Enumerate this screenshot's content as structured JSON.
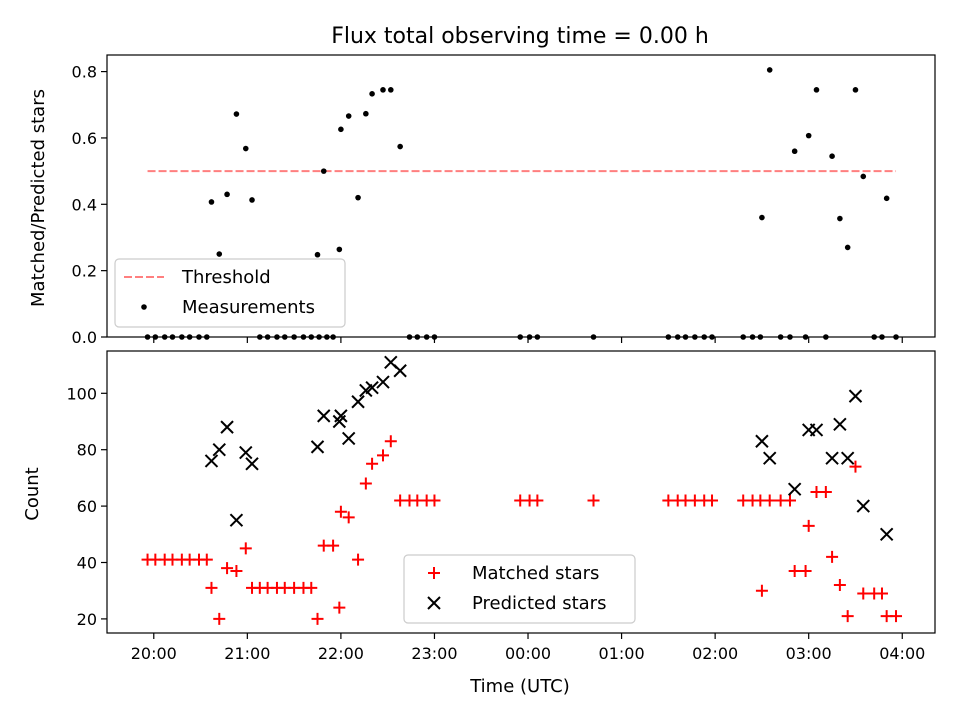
{
  "chart_data": [
    {
      "type": "scatter",
      "title": "Flux total observing time = 0.00 h",
      "ylabel": "Matched/Predicted stars",
      "ylim": [
        0,
        0.85
      ],
      "yticks": [
        "0.0",
        "0.2",
        "0.4",
        "0.6",
        "0.8"
      ],
      "x_hours_range": [
        -4.5,
        4.35
      ],
      "threshold": {
        "name": "Threshold",
        "value": 0.5,
        "x_start": "19:56",
        "x_end": "03:56",
        "color": "#ff7f7f"
      },
      "legend": {
        "location": "lower-left",
        "entries": [
          "Threshold",
          "Measurements"
        ]
      },
      "series": [
        {
          "name": "Measurements",
          "color": "#000000",
          "points": [
            {
              "time": "19:56",
              "y": 0.0
            },
            {
              "time": "20:01",
              "y": 0.0
            },
            {
              "time": "20:07",
              "y": 0.0
            },
            {
              "time": "20:12",
              "y": 0.0
            },
            {
              "time": "20:18",
              "y": 0.0
            },
            {
              "time": "20:23",
              "y": 0.0
            },
            {
              "time": "20:29",
              "y": 0.0
            },
            {
              "time": "20:34",
              "y": 0.0
            },
            {
              "time": "20:37",
              "y": 0.407
            },
            {
              "time": "20:42",
              "y": 0.25
            },
            {
              "time": "20:47",
              "y": 0.43
            },
            {
              "time": "20:53",
              "y": 0.672
            },
            {
              "time": "20:59",
              "y": 0.568
            },
            {
              "time": "21:03",
              "y": 0.413
            },
            {
              "time": "21:08",
              "y": 0.0
            },
            {
              "time": "21:13",
              "y": 0.0
            },
            {
              "time": "21:19",
              "y": 0.0
            },
            {
              "time": "21:24",
              "y": 0.0
            },
            {
              "time": "21:30",
              "y": 0.0
            },
            {
              "time": "21:36",
              "y": 0.0
            },
            {
              "time": "21:41",
              "y": 0.0
            },
            {
              "time": "21:46",
              "y": 0.0
            },
            {
              "time": "21:51",
              "y": 0.0
            },
            {
              "time": "21:45",
              "y": 0.248
            },
            {
              "time": "21:49",
              "y": 0.5
            },
            {
              "time": "21:55",
              "y": 0.0
            },
            {
              "time": "21:59",
              "y": 0.264
            },
            {
              "time": "22:00",
              "y": 0.626
            },
            {
              "time": "22:05",
              "y": 0.666
            },
            {
              "time": "22:11",
              "y": 0.42
            },
            {
              "time": "22:16",
              "y": 0.673
            },
            {
              "time": "22:20",
              "y": 0.733
            },
            {
              "time": "22:27",
              "y": 0.745
            },
            {
              "time": "22:32",
              "y": 0.745
            },
            {
              "time": "22:38",
              "y": 0.574
            },
            {
              "time": "22:44",
              "y": 0.0
            },
            {
              "time": "22:49",
              "y": 0.0
            },
            {
              "time": "22:55",
              "y": 0.0
            },
            {
              "time": "23:00",
              "y": 0.0
            },
            {
              "time": "23:55",
              "y": 0.0
            },
            {
              "time": "00:01",
              "y": 0.0
            },
            {
              "time": "00:06",
              "y": 0.0
            },
            {
              "time": "00:42",
              "y": 0.0
            },
            {
              "time": "01:30",
              "y": 0.0
            },
            {
              "time": "01:36",
              "y": 0.0
            },
            {
              "time": "01:41",
              "y": 0.0
            },
            {
              "time": "01:47",
              "y": 0.0
            },
            {
              "time": "01:53",
              "y": 0.0
            },
            {
              "time": "01:58",
              "y": 0.0
            },
            {
              "time": "02:18",
              "y": 0.0
            },
            {
              "time": "02:24",
              "y": 0.0
            },
            {
              "time": "02:29",
              "y": 0.0
            },
            {
              "time": "02:30",
              "y": 0.36
            },
            {
              "time": "02:35",
              "y": 0.805
            },
            {
              "time": "02:42",
              "y": 0.0
            },
            {
              "time": "02:48",
              "y": 0.0
            },
            {
              "time": "02:51",
              "y": 0.56
            },
            {
              "time": "02:58",
              "y": 0.0
            },
            {
              "time": "03:00",
              "y": 0.607
            },
            {
              "time": "03:05",
              "y": 0.745
            },
            {
              "time": "03:11",
              "y": 0.0
            },
            {
              "time": "03:15",
              "y": 0.545
            },
            {
              "time": "03:20",
              "y": 0.357
            },
            {
              "time": "03:25",
              "y": 0.27
            },
            {
              "time": "03:30",
              "y": 0.745
            },
            {
              "time": "03:35",
              "y": 0.484
            },
            {
              "time": "03:42",
              "y": 0.0
            },
            {
              "time": "03:47",
              "y": 0.0
            },
            {
              "time": "03:50",
              "y": 0.418
            },
            {
              "time": "03:56",
              "y": 0.0
            }
          ]
        }
      ]
    },
    {
      "type": "scatter",
      "xlabel": "Time (UTC)",
      "ylabel": "Count",
      "ylim": [
        15,
        115
      ],
      "yticks": [
        "20",
        "40",
        "60",
        "80",
        "100"
      ],
      "xticks": [
        "20:00",
        "21:00",
        "22:00",
        "23:00",
        "00:00",
        "01:00",
        "02:00",
        "03:00",
        "04:00"
      ],
      "x_hours_range": [
        -4.5,
        4.35
      ],
      "legend": {
        "location": "lower-center",
        "entries": [
          "Matched stars",
          "Predicted stars"
        ]
      },
      "series": [
        {
          "name": "Matched stars",
          "marker": "plus",
          "color": "#ff0000",
          "points": [
            {
              "time": "19:56",
              "y": 41
            },
            {
              "time": "20:01",
              "y": 41
            },
            {
              "time": "20:07",
              "y": 41
            },
            {
              "time": "20:12",
              "y": 41
            },
            {
              "time": "20:18",
              "y": 41
            },
            {
              "time": "20:23",
              "y": 41
            },
            {
              "time": "20:29",
              "y": 41
            },
            {
              "time": "20:34",
              "y": 41
            },
            {
              "time": "20:37",
              "y": 31
            },
            {
              "time": "20:42",
              "y": 20
            },
            {
              "time": "20:47",
              "y": 38
            },
            {
              "time": "20:53",
              "y": 37
            },
            {
              "time": "20:59",
              "y": 45
            },
            {
              "time": "21:03",
              "y": 31
            },
            {
              "time": "21:08",
              "y": 31
            },
            {
              "time": "21:13",
              "y": 31
            },
            {
              "time": "21:19",
              "y": 31
            },
            {
              "time": "21:24",
              "y": 31
            },
            {
              "time": "21:30",
              "y": 31
            },
            {
              "time": "21:36",
              "y": 31
            },
            {
              "time": "21:41",
              "y": 31
            },
            {
              "time": "21:45",
              "y": 20
            },
            {
              "time": "21:49",
              "y": 46
            },
            {
              "time": "21:55",
              "y": 46
            },
            {
              "time": "21:59",
              "y": 24
            },
            {
              "time": "22:00",
              "y": 58
            },
            {
              "time": "22:05",
              "y": 56
            },
            {
              "time": "22:11",
              "y": 41
            },
            {
              "time": "22:16",
              "y": 68
            },
            {
              "time": "22:20",
              "y": 75
            },
            {
              "time": "22:27",
              "y": 78
            },
            {
              "time": "22:32",
              "y": 83
            },
            {
              "time": "22:38",
              "y": 62
            },
            {
              "time": "22:44",
              "y": 62
            },
            {
              "time": "22:49",
              "y": 62
            },
            {
              "time": "22:55",
              "y": 62
            },
            {
              "time": "23:00",
              "y": 62
            },
            {
              "time": "23:55",
              "y": 62
            },
            {
              "time": "00:01",
              "y": 62
            },
            {
              "time": "00:06",
              "y": 62
            },
            {
              "time": "00:42",
              "y": 62
            },
            {
              "time": "01:30",
              "y": 62
            },
            {
              "time": "01:36",
              "y": 62
            },
            {
              "time": "01:41",
              "y": 62
            },
            {
              "time": "01:47",
              "y": 62
            },
            {
              "time": "01:53",
              "y": 62
            },
            {
              "time": "01:58",
              "y": 62
            },
            {
              "time": "02:18",
              "y": 62
            },
            {
              "time": "02:24",
              "y": 62
            },
            {
              "time": "02:29",
              "y": 62
            },
            {
              "time": "02:30",
              "y": 30
            },
            {
              "time": "02:35",
              "y": 62
            },
            {
              "time": "02:42",
              "y": 62
            },
            {
              "time": "02:48",
              "y": 62
            },
            {
              "time": "02:51",
              "y": 37
            },
            {
              "time": "02:58",
              "y": 37
            },
            {
              "time": "03:00",
              "y": 53
            },
            {
              "time": "03:05",
              "y": 65
            },
            {
              "time": "03:11",
              "y": 65
            },
            {
              "time": "03:15",
              "y": 42
            },
            {
              "time": "03:20",
              "y": 32
            },
            {
              "time": "03:25",
              "y": 21
            },
            {
              "time": "03:30",
              "y": 74
            },
            {
              "time": "03:35",
              "y": 29
            },
            {
              "time": "03:42",
              "y": 29
            },
            {
              "time": "03:47",
              "y": 29
            },
            {
              "time": "03:50",
              "y": 21
            },
            {
              "time": "03:56",
              "y": 21
            }
          ]
        },
        {
          "name": "Predicted stars",
          "marker": "x",
          "color": "#000000",
          "points": [
            {
              "time": "20:37",
              "y": 76
            },
            {
              "time": "20:42",
              "y": 80
            },
            {
              "time": "20:47",
              "y": 88
            },
            {
              "time": "20:53",
              "y": 55
            },
            {
              "time": "20:59",
              "y": 79
            },
            {
              "time": "21:03",
              "y": 75
            },
            {
              "time": "21:45",
              "y": 81
            },
            {
              "time": "21:49",
              "y": 92
            },
            {
              "time": "21:59",
              "y": 90
            },
            {
              "time": "22:00",
              "y": 92
            },
            {
              "time": "22:05",
              "y": 84
            },
            {
              "time": "22:11",
              "y": 97
            },
            {
              "time": "22:16",
              "y": 101
            },
            {
              "time": "22:20",
              "y": 102
            },
            {
              "time": "22:27",
              "y": 104
            },
            {
              "time": "22:32",
              "y": 111
            },
            {
              "time": "22:38",
              "y": 108
            },
            {
              "time": "02:30",
              "y": 83
            },
            {
              "time": "02:35",
              "y": 77
            },
            {
              "time": "02:51",
              "y": 66
            },
            {
              "time": "03:00",
              "y": 87
            },
            {
              "time": "03:05",
              "y": 87
            },
            {
              "time": "03:15",
              "y": 77
            },
            {
              "time": "03:20",
              "y": 89
            },
            {
              "time": "03:25",
              "y": 77
            },
            {
              "time": "03:30",
              "y": 99
            },
            {
              "time": "03:35",
              "y": 60
            },
            {
              "time": "03:50",
              "y": 50
            }
          ]
        }
      ]
    }
  ]
}
